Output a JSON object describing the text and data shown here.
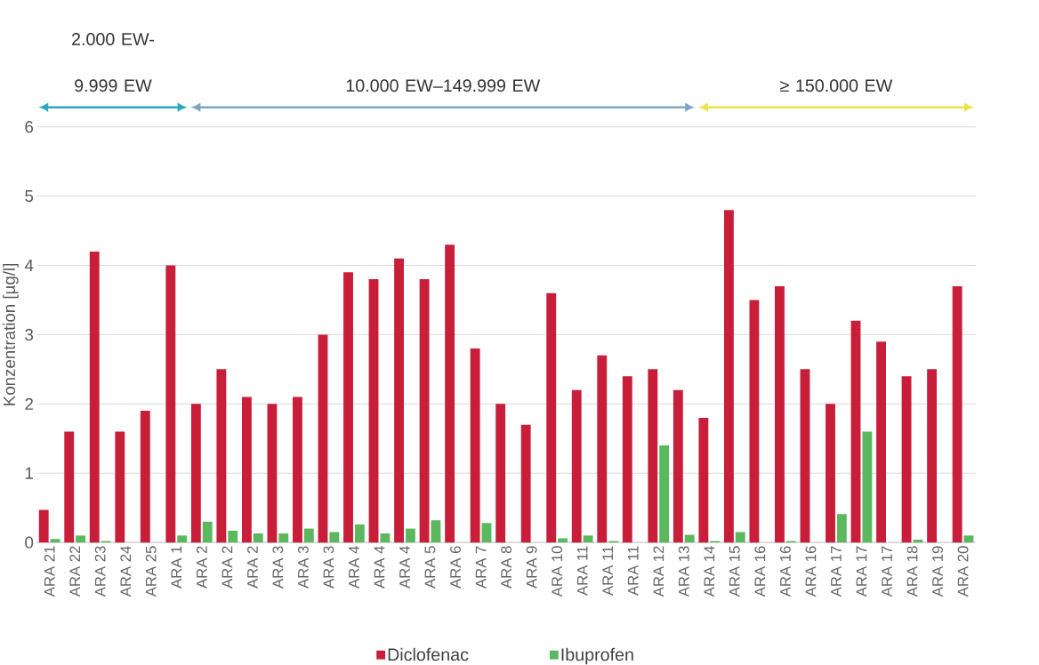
{
  "chart_data": {
    "type": "bar",
    "ylabel": "Konzentration [µg/l]",
    "categories": [
      "ARA 21",
      "ARA 22",
      "ARA 23",
      "ARA 24",
      "ARA 25",
      "ARA 1",
      "ARA 2",
      "ARA 2",
      "ARA 2",
      "ARA 3",
      "ARA 3",
      "ARA 3",
      "ARA 4",
      "ARA 4",
      "ARA 4",
      "ARA 5",
      "ARA 6",
      "ARA 7",
      "ARA 8",
      "ARA 9",
      "ARA 10",
      "ARA 11",
      "ARA 11",
      "ARA 11",
      "ARA 12",
      "ARA 13",
      "ARA 14",
      "ARA 15",
      "ARA 16",
      "ARA 16",
      "ARA 16",
      "ARA 17",
      "ARA 17",
      "ARA 17",
      "ARA 18",
      "ARA 19",
      "ARA 20"
    ],
    "series": [
      {
        "name": "Diclofenac",
        "color": "#c81e3a",
        "values": [
          0.47,
          1.6,
          4.2,
          1.6,
          1.9,
          4.0,
          2.0,
          2.5,
          2.1,
          2.0,
          2.1,
          3.0,
          3.9,
          3.8,
          4.1,
          3.8,
          4.3,
          2.8,
          2.0,
          1.7,
          3.6,
          2.2,
          2.7,
          2.4,
          2.5,
          2.2,
          1.8,
          4.8,
          3.5,
          3.7,
          2.5,
          2.0,
          3.2,
          2.9,
          2.4,
          2.5,
          3.7
        ]
      },
      {
        "name": "Ibuprofen",
        "color": "#5cb85f",
        "values": [
          0.05,
          0.1,
          0.02,
          null,
          null,
          0.1,
          0.3,
          0.17,
          0.13,
          0.13,
          0.2,
          0.15,
          0.26,
          0.13,
          0.2,
          0.32,
          null,
          0.28,
          null,
          null,
          0.06,
          0.1,
          0.02,
          null,
          1.4,
          0.11,
          0.02,
          0.15,
          null,
          0.02,
          null,
          0.41,
          1.6,
          null,
          0.04,
          null,
          0.1
        ]
      }
    ],
    "ylim": [
      0,
      6
    ],
    "yticks": [
      0,
      1,
      2,
      3,
      4,
      5,
      6
    ],
    "grid": "y",
    "legend": "bottom",
    "annotations": [
      "2.000 EW- 9.999 EW",
      "10.000 EW–149.999 EW",
      "≥ 150.000 EW"
    ]
  }
}
